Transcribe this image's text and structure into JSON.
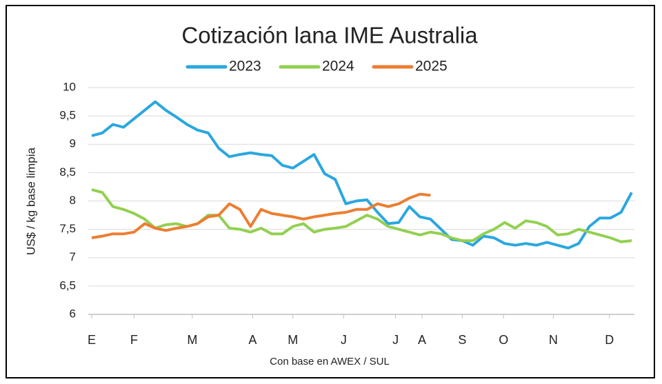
{
  "chart_data": {
    "type": "line",
    "title": "Cotización lana IME Australia",
    "y_label": "US$ / kg base limpia",
    "x_label": "Con base en AWEX / SUL",
    "x": [
      0,
      1,
      2,
      3,
      4,
      5,
      6,
      7,
      8,
      9,
      10,
      11,
      12,
      13,
      14,
      15,
      16,
      17,
      18,
      19,
      20,
      21,
      22,
      23,
      24,
      25,
      26,
      27,
      28,
      29,
      30,
      31,
      32,
      33,
      34,
      35,
      36,
      37,
      38,
      39,
      40,
      41,
      42,
      43,
      44,
      45,
      46,
      47,
      48,
      49,
      50,
      51
    ],
    "xlim": [
      0,
      51
    ],
    "xticks": [
      {
        "value": 0,
        "label": "E"
      },
      {
        "value": 4,
        "label": "F"
      },
      {
        "value": 9.5,
        "label": "M"
      },
      {
        "value": 15.2,
        "label": "A"
      },
      {
        "value": 19,
        "label": "M"
      },
      {
        "value": 23.8,
        "label": "J"
      },
      {
        "value": 28.7,
        "label": "J"
      },
      {
        "value": 31.2,
        "label": "A"
      },
      {
        "value": 35,
        "label": "S"
      },
      {
        "value": 38.9,
        "label": "O"
      },
      {
        "value": 43.6,
        "label": "N"
      },
      {
        "value": 48.9,
        "label": "D"
      }
    ],
    "ylim": [
      6,
      10
    ],
    "yticks": [
      6,
      {
        "value": 6.5,
        "label": "6,5"
      },
      7,
      {
        "value": 7.5,
        "label": "7,5"
      },
      8,
      {
        "value": 8.5,
        "label": "8,5"
      },
      9,
      {
        "value": 9.5,
        "label": "9,5"
      },
      10
    ],
    "grid": true,
    "series": [
      {
        "name": "2023",
        "color": "#2aa7df",
        "values": [
          9.15,
          9.2,
          9.35,
          9.3,
          9.45,
          9.6,
          9.75,
          9.6,
          9.48,
          9.35,
          9.25,
          9.2,
          8.93,
          8.78,
          8.82,
          8.85,
          8.82,
          8.8,
          8.63,
          8.58,
          8.7,
          8.82,
          8.48,
          8.38,
          7.95,
          8.0,
          8.02,
          7.8,
          7.6,
          7.62,
          7.9,
          7.72,
          7.68,
          7.5,
          7.32,
          7.3,
          7.22,
          7.38,
          7.35,
          7.25,
          7.22,
          7.25,
          7.22,
          7.27,
          7.22,
          7.17,
          7.25,
          7.55,
          7.7,
          7.7,
          7.8,
          8.15
        ]
      },
      {
        "name": "2024",
        "color": "#92d050",
        "values": [
          8.2,
          8.15,
          7.9,
          7.85,
          7.78,
          7.68,
          7.52,
          7.58,
          7.6,
          7.55,
          7.6,
          7.75,
          7.75,
          7.52,
          7.5,
          7.45,
          7.52,
          7.42,
          7.42,
          7.55,
          7.6,
          7.45,
          7.5,
          7.52,
          7.55,
          7.65,
          7.75,
          7.68,
          7.55,
          7.5,
          7.45,
          7.4,
          7.45,
          7.42,
          7.35,
          7.3,
          7.3,
          7.42,
          7.5,
          7.62,
          7.52,
          7.65,
          7.62,
          7.55,
          7.4,
          7.42,
          7.5,
          7.45,
          7.4,
          7.35,
          7.28,
          7.3
        ]
      },
      {
        "name": "2025",
        "color": "#ed7d31",
        "values": [
          7.35,
          7.38,
          7.42,
          7.42,
          7.45,
          7.6,
          7.52,
          7.48,
          7.52,
          7.55,
          7.6,
          7.72,
          7.75,
          7.95,
          7.85,
          7.55,
          7.85,
          7.78,
          7.75,
          7.72,
          7.68,
          7.72,
          7.75,
          7.78,
          7.8,
          7.85,
          7.85,
          7.95,
          7.9,
          7.95,
          8.05,
          8.12,
          8.1,
          null,
          null,
          null,
          null,
          null,
          null,
          null,
          null,
          null,
          null,
          null,
          null,
          null,
          null,
          null,
          null,
          null,
          null,
          null
        ]
      }
    ]
  }
}
